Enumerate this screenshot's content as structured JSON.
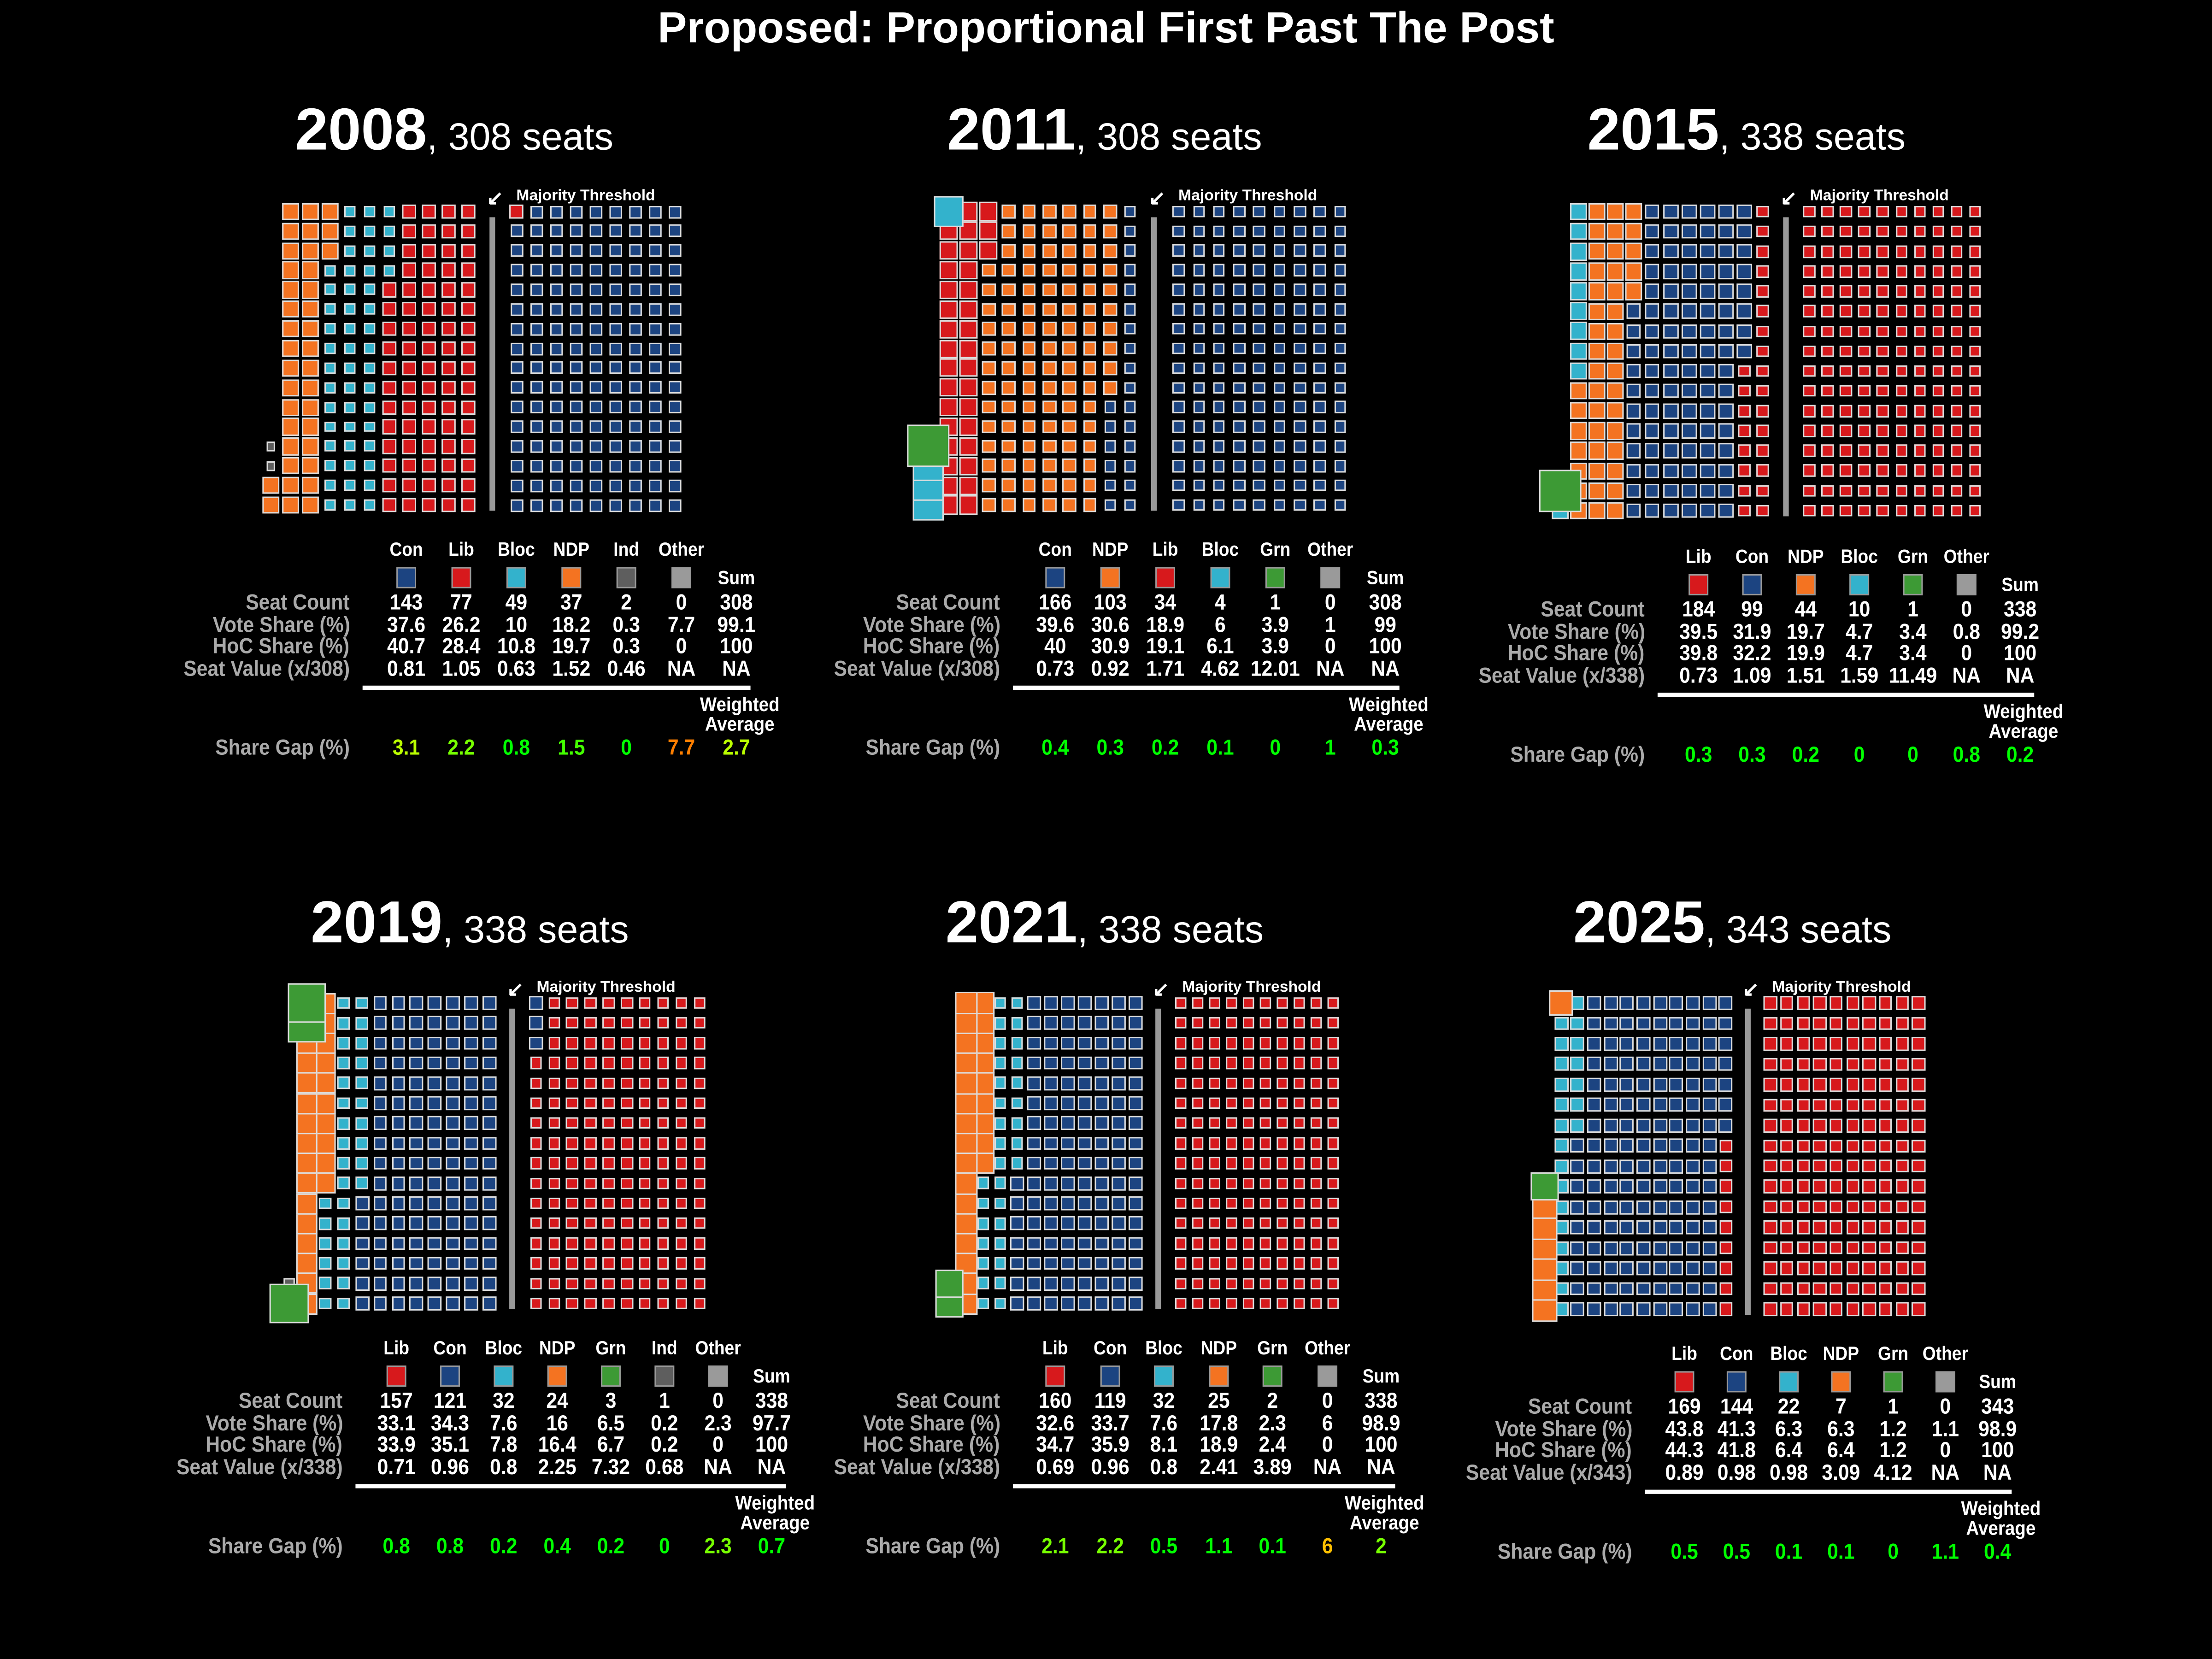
{
  "title": "Proposed: Proportional First Past The Post",
  "party_colors": {
    "Con": "#1c4481",
    "Lib": "#d7191c",
    "Bloc": "#33b2cc",
    "NDP": "#f47321",
    "Grn": "#3d9a35",
    "Ind": "#5e5e5e",
    "Other": "#9a9a9a"
  },
  "labels": {
    "majority_threshold": "Majority Threshold",
    "sum": "Sum",
    "seat_count": "Seat Count",
    "vote_share": "Vote Share (%)",
    "hoc_share": "HoC Share (%)",
    "share_gap": "Share Gap (%)",
    "weighted": "Weighted",
    "average": "Average"
  },
  "chart_data": [
    {
      "type": "waffle",
      "year": "2008",
      "seats_label": "308 seats",
      "seat_value_label": "Seat Value (x/308)",
      "parties": [
        "Con",
        "Lib",
        "Bloc",
        "NDP",
        "Ind",
        "Other"
      ],
      "seat_count": [
        "143",
        "77",
        "49",
        "37",
        "2",
        "0",
        "308"
      ],
      "vote_share": [
        "37.6",
        "26.2",
        "10",
        "18.2",
        "0.3",
        "7.7",
        "99.1"
      ],
      "hoc_share": [
        "40.7",
        "28.4",
        "10.8",
        "19.7",
        "0.3",
        "0",
        "100"
      ],
      "seat_value": [
        "0.81",
        "1.05",
        "0.63",
        "1.52",
        "0.46",
        "NA",
        "NA"
      ],
      "share_gap": [
        "3.1",
        "2.2",
        "0.8",
        "1.5",
        "0",
        "7.7",
        "2.7"
      ]
    },
    {
      "type": "waffle",
      "year": "2011",
      "seats_label": "308 seats",
      "seat_value_label": "Seat Value (x/308)",
      "parties": [
        "Con",
        "NDP",
        "Lib",
        "Bloc",
        "Grn",
        "Other"
      ],
      "seat_count": [
        "166",
        "103",
        "34",
        "4",
        "1",
        "0",
        "308"
      ],
      "vote_share": [
        "39.6",
        "30.6",
        "18.9",
        "6",
        "3.9",
        "1",
        "99"
      ],
      "hoc_share": [
        "40",
        "30.9",
        "19.1",
        "6.1",
        "3.9",
        "0",
        "100"
      ],
      "seat_value": [
        "0.73",
        "0.92",
        "1.71",
        "4.62",
        "12.01",
        "NA",
        "NA"
      ],
      "share_gap": [
        "0.4",
        "0.3",
        "0.2",
        "0.1",
        "0",
        "1",
        "0.3"
      ]
    },
    {
      "type": "waffle",
      "year": "2015",
      "seats_label": "338 seats",
      "seat_value_label": "Seat Value (x/338)",
      "parties": [
        "Lib",
        "Con",
        "NDP",
        "Bloc",
        "Grn",
        "Other"
      ],
      "seat_count": [
        "184",
        "99",
        "44",
        "10",
        "1",
        "0",
        "338"
      ],
      "vote_share": [
        "39.5",
        "31.9",
        "19.7",
        "4.7",
        "3.4",
        "0.8",
        "99.2"
      ],
      "hoc_share": [
        "39.8",
        "32.2",
        "19.9",
        "4.7",
        "3.4",
        "0",
        "100"
      ],
      "seat_value": [
        "0.73",
        "1.09",
        "1.51",
        "1.59",
        "11.49",
        "NA",
        "NA"
      ],
      "share_gap": [
        "0.3",
        "0.3",
        "0.2",
        "0",
        "0",
        "0.8",
        "0.2"
      ]
    },
    {
      "type": "waffle",
      "year": "2019",
      "seats_label": "338 seats",
      "seat_value_label": "Seat Value (x/338)",
      "parties": [
        "Lib",
        "Con",
        "Bloc",
        "NDP",
        "Grn",
        "Ind",
        "Other"
      ],
      "seat_count": [
        "157",
        "121",
        "32",
        "24",
        "3",
        "1",
        "0",
        "338"
      ],
      "vote_share": [
        "33.1",
        "34.3",
        "7.6",
        "16",
        "6.5",
        "0.2",
        "2.3",
        "97.7"
      ],
      "hoc_share": [
        "33.9",
        "35.1",
        "7.8",
        "16.4",
        "6.7",
        "0.2",
        "0",
        "100"
      ],
      "seat_value": [
        "0.71",
        "0.96",
        "0.8",
        "2.25",
        "7.32",
        "0.68",
        "NA",
        "NA"
      ],
      "share_gap": [
        "0.8",
        "0.8",
        "0.2",
        "0.4",
        "0.2",
        "0",
        "2.3",
        "0.7"
      ]
    },
    {
      "type": "waffle",
      "year": "2021",
      "seats_label": "338 seats",
      "seat_value_label": "Seat Value (x/338)",
      "parties": [
        "Lib",
        "Con",
        "Bloc",
        "NDP",
        "Grn",
        "Other"
      ],
      "seat_count": [
        "160",
        "119",
        "32",
        "25",
        "2",
        "0",
        "338"
      ],
      "vote_share": [
        "32.6",
        "33.7",
        "7.6",
        "17.8",
        "2.3",
        "6",
        "98.9"
      ],
      "hoc_share": [
        "34.7",
        "35.9",
        "8.1",
        "18.9",
        "2.4",
        "0",
        "100"
      ],
      "seat_value": [
        "0.69",
        "0.96",
        "0.8",
        "2.41",
        "3.89",
        "NA",
        "NA"
      ],
      "share_gap": [
        "2.1",
        "2.2",
        "0.5",
        "1.1",
        "0.1",
        "6",
        "2"
      ]
    },
    {
      "type": "waffle",
      "year": "2025",
      "seats_label": "343 seats",
      "seat_value_label": "Seat Value (x/343)",
      "parties": [
        "Lib",
        "Con",
        "Bloc",
        "NDP",
        "Grn",
        "Other"
      ],
      "seat_count": [
        "169",
        "144",
        "22",
        "7",
        "1",
        "0",
        "343"
      ],
      "vote_share": [
        "43.8",
        "41.3",
        "6.3",
        "6.3",
        "1.2",
        "1.1",
        "98.9"
      ],
      "hoc_share": [
        "44.3",
        "41.8",
        "6.4",
        "6.4",
        "1.2",
        "0",
        "100"
      ],
      "seat_value": [
        "0.89",
        "0.98",
        "0.98",
        "3.09",
        "4.12",
        "NA",
        "NA"
      ],
      "share_gap": [
        "0.5",
        "0.5",
        "0.1",
        "0.1",
        "0",
        "1.1",
        "0.4"
      ]
    }
  ]
}
